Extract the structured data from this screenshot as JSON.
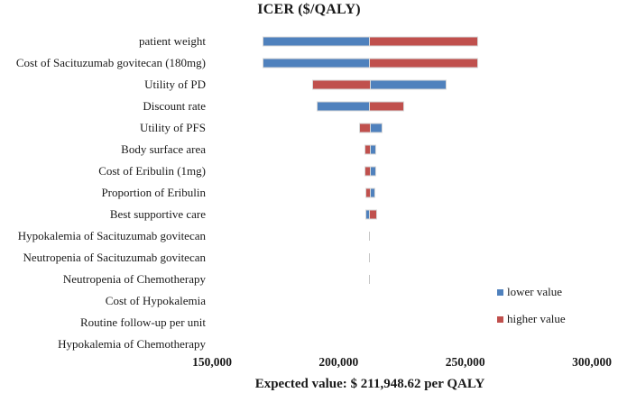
{
  "chart_data": {
    "type": "bar",
    "subtype": "tornado",
    "title": "ICER ($/QALY)",
    "xlabel": "Expected value: $ 211,948.62 per QALY",
    "baseline_value": 211948.62,
    "xlim": [
      150000,
      300000
    ],
    "x_ticks": [
      {
        "value": 150000,
        "label": "150,000"
      },
      {
        "value": 200000,
        "label": "200,000"
      },
      {
        "value": 250000,
        "label": "250,000"
      },
      {
        "value": 300000,
        "label": "300,000"
      }
    ],
    "grid": false,
    "legend_position": "right-bottom",
    "colors": {
      "lower": "#4F81BD",
      "higher": "#C0504D",
      "negligible_tick": "#c6c6c6"
    },
    "legend": {
      "lower_label": "lower value",
      "higher_label": "higher value"
    },
    "rows": [
      {
        "label": "patient weight",
        "lower": 170000,
        "higher": 254400
      },
      {
        "label": "Cost of Sacituzumab govitecan (180mg)",
        "lower": 170000,
        "higher": 254400
      },
      {
        "label": "Utility of PD",
        "lower": 241800,
        "higher": 189500
      },
      {
        "label": "Discount rate",
        "lower": 191500,
        "higher": 225300
      },
      {
        "label": "Utility of PFS",
        "lower": 216800,
        "higher": 208000
      },
      {
        "label": "Body surface area",
        "lower": 214100,
        "higher": 210300
      },
      {
        "label": "Cost of Eribulin (1mg)",
        "lower": 214000,
        "higher": 210300
      },
      {
        "label": "Proportion of Eribulin",
        "lower": 213900,
        "higher": 210400
      },
      {
        "label": "Best supportive care",
        "lower": 210400,
        "higher": 214500
      },
      {
        "label": "Hypokalemia of Sacituzumab govitecan",
        "lower": 211800,
        "higher": 212100
      },
      {
        "label": "Neutropenia of Sacituzumab govitecan",
        "lower": 211800,
        "higher": 212100
      },
      {
        "label": "Neutropenia of Chemotherapy",
        "lower": 211800,
        "higher": 212100
      },
      {
        "label": "Cost of Hypokalemia",
        "lower": 211948.62,
        "higher": 211948.62
      },
      {
        "label": "Routine follow-up per unit",
        "lower": 211948.62,
        "higher": 211948.62
      },
      {
        "label": "Hypokalemia of Chemotherapy",
        "lower": 211948.62,
        "higher": 211948.62
      }
    ]
  }
}
